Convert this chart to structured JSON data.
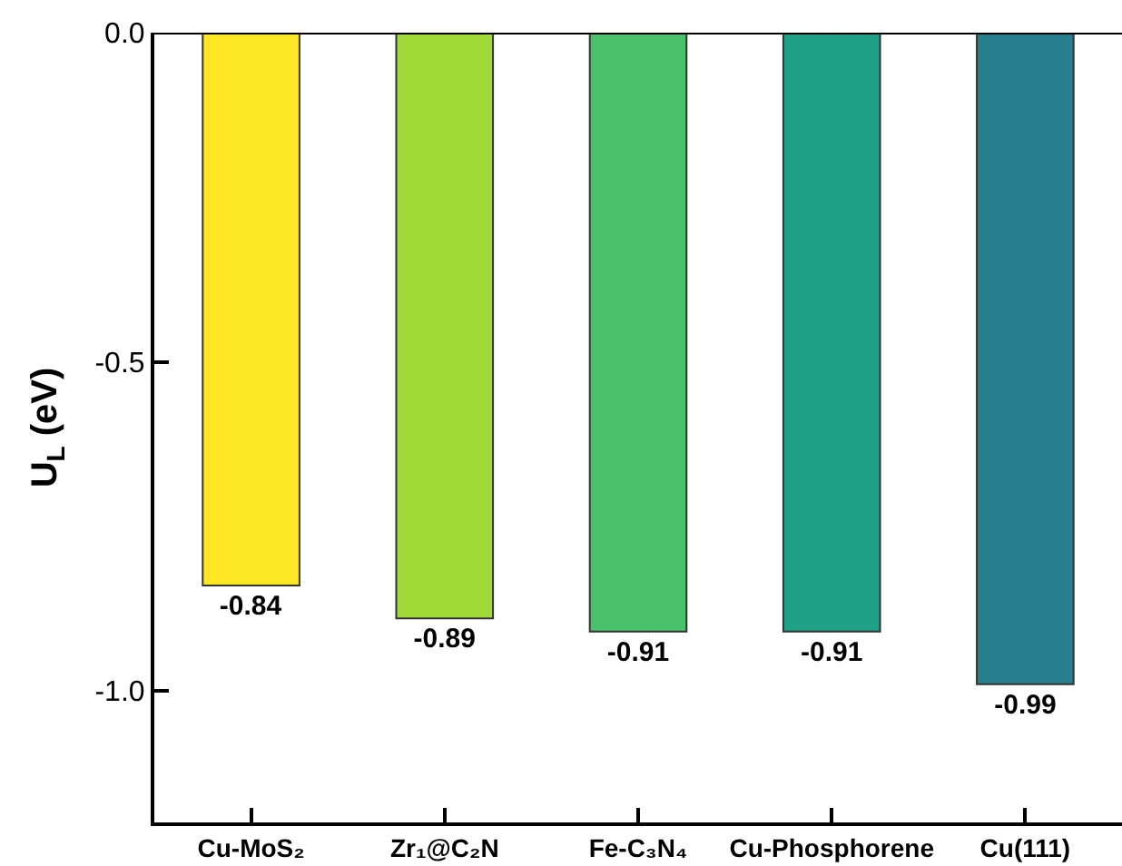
{
  "chart_data": {
    "type": "bar",
    "ylabel": "U$_{L}$ (eV)",
    "categories": [
      "Cu-MoS₂",
      "Zr₁@C₂N",
      "Fe-C₃N₄",
      "Cu-Phosphorene",
      "Cu(111)"
    ],
    "values": [
      -0.84,
      -0.89,
      -0.91,
      -0.91,
      -0.99
    ],
    "colors": [
      "#fde725",
      "#a0da39",
      "#4ac16d",
      "#1fa187",
      "#277f8e"
    ],
    "ylim": [
      -1.2,
      0
    ],
    "yticks": [
      {
        "value": 0,
        "label": "0.0"
      },
      {
        "value": -0.5,
        "label": "-0.5"
      },
      {
        "value": -1.0,
        "label": "-1.0"
      }
    ],
    "data_labels": true
  }
}
